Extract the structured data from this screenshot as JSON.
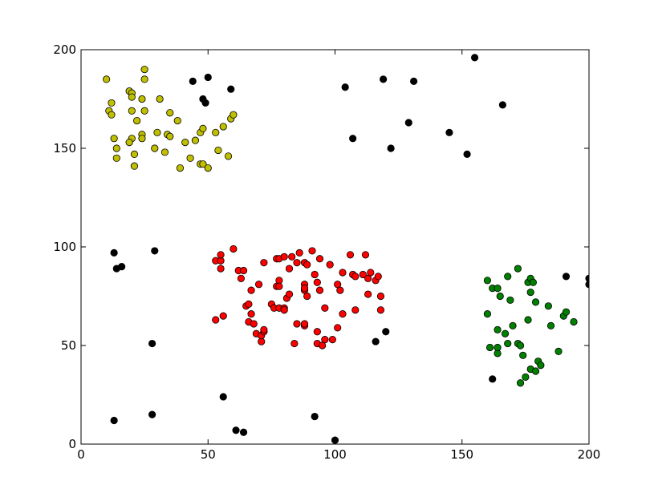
{
  "chart_data": {
    "type": "scatter",
    "xlim": [
      0,
      200
    ],
    "ylim": [
      0,
      200
    ],
    "xticks": [
      0,
      50,
      100,
      150,
      200
    ],
    "yticks": [
      0,
      50,
      100,
      150,
      200
    ],
    "grid": false,
    "series": [
      {
        "color": "#bfbf00",
        "x": [
          10,
          11,
          12,
          12,
          13,
          14,
          14,
          19,
          20,
          20,
          20,
          19,
          20,
          21,
          21,
          22,
          24,
          25,
          25,
          25,
          24,
          24,
          29,
          30,
          31,
          33,
          34,
          35,
          35,
          38,
          39,
          41,
          43,
          45,
          47,
          48,
          47,
          48,
          50,
          53,
          54,
          56,
          58,
          59,
          60
        ],
        "values": [
          185,
          169,
          167,
          173,
          155,
          150,
          145,
          179,
          178,
          176,
          155,
          153,
          169,
          147,
          141,
          164,
          175,
          185,
          190,
          169,
          157,
          155,
          150,
          158,
          175,
          148,
          157,
          168,
          156,
          164,
          140,
          153,
          145,
          154,
          158,
          160,
          142,
          142,
          140,
          158,
          149,
          161,
          146,
          165,
          167
        ]
      },
      {
        "color": "#ff0000",
        "x": [
          53,
          55,
          55,
          55,
          60,
          62,
          63,
          64,
          65,
          66,
          66,
          67,
          67,
          68,
          69,
          70,
          71,
          71,
          72,
          72,
          72,
          75,
          76,
          77,
          77,
          78,
          78,
          78,
          78,
          80,
          80,
          80,
          81,
          82,
          82,
          83,
          84,
          85,
          85,
          86,
          88,
          88,
          88,
          88,
          88,
          88,
          89,
          89,
          91,
          92,
          93,
          93,
          93,
          94,
          94,
          95,
          96,
          96,
          98,
          99,
          101,
          101,
          102,
          103,
          103,
          106,
          107,
          108,
          108,
          111,
          112,
          113,
          113,
          114,
          116,
          117,
          118,
          118,
          53,
          56
        ],
        "values": [
          93,
          93,
          96,
          89,
          99,
          88,
          84,
          88,
          70,
          71,
          62,
          66,
          78,
          61,
          56,
          81,
          52,
          55,
          57,
          58,
          92,
          71,
          69,
          80,
          94,
          83,
          80,
          94,
          69,
          69,
          95,
          68,
          74,
          76,
          89,
          95,
          51,
          61,
          92,
          97,
          60,
          61,
          92,
          81,
          78,
          79,
          75,
          91,
          98,
          86,
          82,
          57,
          51,
          94,
          78,
          50,
          53,
          69,
          91,
          53,
          81,
          59,
          78,
          66,
          87,
          96,
          86,
          68,
          85,
          86,
          96,
          76,
          84,
          87,
          83,
          85,
          75,
          68,
          63,
          65
        ]
      },
      {
        "color": "#008000",
        "x": [
          160,
          160,
          161,
          162,
          164,
          164,
          164,
          164,
          165,
          167,
          168,
          168,
          169,
          170,
          172,
          172,
          173,
          173,
          174,
          175,
          176,
          176,
          177,
          177,
          177,
          178,
          179,
          179,
          180,
          181,
          184,
          185,
          188,
          190,
          191,
          194
        ],
        "values": [
          83,
          66,
          49,
          79,
          79,
          58,
          46,
          49,
          75,
          56,
          51,
          85,
          73,
          60,
          89,
          51,
          50,
          31,
          45,
          34,
          82,
          63,
          84,
          77,
          38,
          82,
          37,
          72,
          42,
          40,
          70,
          60,
          47,
          65,
          67,
          62
        ]
      },
      {
        "color": "#000000",
        "x": [
          44,
          48,
          49,
          50,
          59,
          104,
          107,
          119,
          122,
          129,
          131,
          145,
          152,
          155,
          166,
          13,
          14,
          16,
          29,
          28,
          28,
          13,
          56,
          61,
          64,
          92,
          100,
          116,
          120,
          162,
          191,
          200,
          200
        ],
        "values": [
          184,
          175,
          173,
          186,
          180,
          181,
          155,
          185,
          150,
          163,
          184,
          158,
          147,
          196,
          172,
          97,
          89,
          90,
          98,
          51,
          15,
          12,
          24,
          7,
          6,
          14,
          2,
          52,
          57,
          33,
          85,
          84,
          81
        ]
      }
    ]
  }
}
